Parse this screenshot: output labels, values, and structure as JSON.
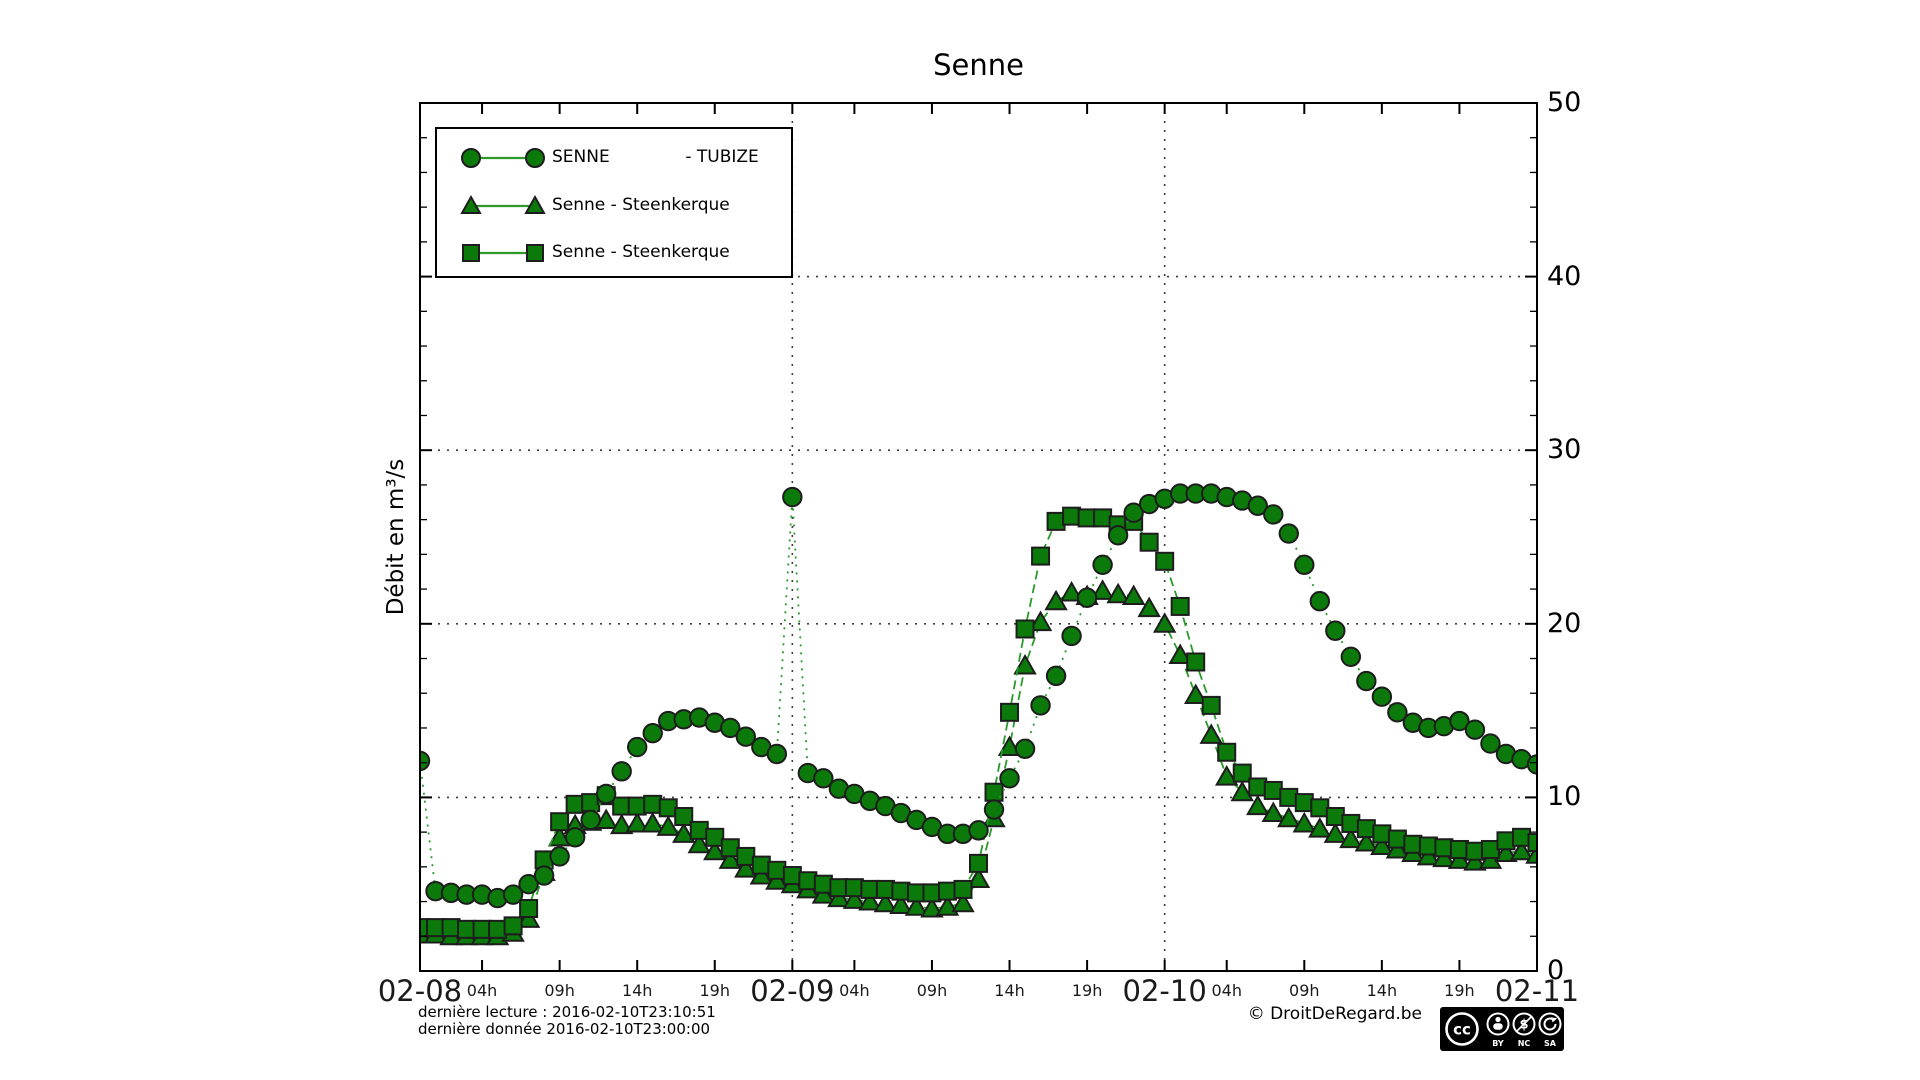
{
  "page": {
    "background": "#ffffff"
  },
  "chart_data": {
    "type": "line",
    "title": "Senne",
    "ylabel": "Débit en m³/s",
    "xlabel": "",
    "ylim": [
      0,
      50
    ],
    "y_ticks": [
      {
        "value": 0,
        "label": "0"
      },
      {
        "value": 10,
        "label": "10"
      },
      {
        "value": 20,
        "label": "20"
      },
      {
        "value": 30,
        "label": "30"
      },
      {
        "value": 40,
        "label": "40"
      },
      {
        "value": 50,
        "label": "50"
      }
    ],
    "y_minor_step": 2,
    "x_axis": {
      "total_hours": 72,
      "day_ticks": [
        {
          "hour": 0,
          "label": "02-08"
        },
        {
          "hour": 24,
          "label": "02-09"
        },
        {
          "hour": 48,
          "label": "02-10"
        },
        {
          "hour": 72,
          "label": "02-11"
        }
      ],
      "hour_ticks": [
        {
          "hour": 4,
          "label": "04h"
        },
        {
          "hour": 9,
          "label": "09h"
        },
        {
          "hour": 14,
          "label": "14h"
        },
        {
          "hour": 19,
          "label": "19h"
        },
        {
          "hour": 28,
          "label": "04h"
        },
        {
          "hour": 33,
          "label": "09h"
        },
        {
          "hour": 38,
          "label": "14h"
        },
        {
          "hour": 43,
          "label": "19h"
        },
        {
          "hour": 52,
          "label": "04h"
        },
        {
          "hour": 57,
          "label": "09h"
        },
        {
          "hour": 62,
          "label": "14h"
        },
        {
          "hour": 67,
          "label": "19h"
        }
      ]
    },
    "grid": {
      "horizontal_values": [
        10,
        20,
        30,
        40
      ],
      "vertical_hours": [
        24,
        48
      ],
      "style": "dotted"
    },
    "legend": [
      {
        "label": "SENNE              - TUBIZE",
        "marker": "circle"
      },
      {
        "label": "Senne - Steenkerque",
        "marker": "triangle"
      },
      {
        "label": "Senne - Steenkerque",
        "marker": "square"
      }
    ],
    "series": [
      {
        "name": "SENNE - TUBIZE",
        "marker": "circle",
        "line_style": "dotted",
        "z": 3,
        "x_start_hour": 0,
        "x_step_hours": 1,
        "values": [
          12.1,
          4.6,
          4.5,
          4.4,
          4.4,
          4.2,
          4.4,
          5.0,
          5.5,
          6.6,
          7.7,
          8.7,
          10.2,
          11.5,
          12.9,
          13.7,
          14.4,
          14.5,
          14.6,
          14.3,
          14.0,
          13.5,
          12.9,
          12.5,
          27.3,
          11.4,
          11.1,
          10.5,
          10.2,
          9.8,
          9.5,
          9.1,
          8.7,
          8.3,
          7.9,
          7.9,
          8.1,
          9.3,
          11.1,
          12.8,
          15.3,
          17.0,
          19.3,
          21.5,
          23.4,
          25.1,
          26.4,
          26.9,
          27.2,
          27.5,
          27.5,
          27.5,
          27.3,
          27.1,
          26.8,
          26.3,
          25.2,
          23.4,
          21.3,
          19.6,
          18.1,
          16.7,
          15.8,
          14.9,
          14.3,
          14.0,
          14.1,
          14.4,
          13.9,
          13.1,
          12.5,
          12.2,
          11.9
        ]
      },
      {
        "name": "Senne - Steenkerque",
        "marker": "triangle",
        "line_style": "dashed",
        "z": 1,
        "x_start_hour": 0,
        "x_step_hours": 1,
        "values": [
          2.1,
          2.1,
          2.0,
          2.0,
          2.0,
          2.0,
          2.2,
          3.0,
          5.7,
          7.7,
          8.4,
          8.6,
          8.7,
          8.4,
          8.5,
          8.5,
          8.3,
          7.9,
          7.3,
          6.9,
          6.4,
          5.9,
          5.5,
          5.2,
          5.0,
          4.7,
          4.4,
          4.2,
          4.1,
          4.0,
          3.9,
          3.8,
          3.7,
          3.6,
          3.7,
          3.9,
          5.3,
          8.8,
          12.9,
          17.6,
          20.1,
          21.3,
          21.8,
          21.6,
          21.9,
          21.7,
          21.6,
          20.9,
          20.0,
          18.2,
          15.9,
          13.6,
          11.2,
          10.3,
          9.5,
          9.1,
          8.8,
          8.5,
          8.2,
          7.9,
          7.6,
          7.4,
          7.2,
          7.0,
          6.8,
          6.6,
          6.5,
          6.4,
          6.3,
          6.4,
          6.8,
          6.9,
          6.7
        ]
      },
      {
        "name": "Senne - Steenkerque",
        "marker": "square",
        "line_style": "dashed",
        "z": 2,
        "x_start_hour": 0,
        "x_step_hours": 1,
        "values": [
          2.5,
          2.5,
          2.5,
          2.4,
          2.4,
          2.4,
          2.6,
          3.6,
          6.4,
          8.6,
          9.6,
          9.7,
          10.1,
          9.5,
          9.5,
          9.6,
          9.4,
          8.9,
          8.1,
          7.7,
          7.1,
          6.6,
          6.1,
          5.8,
          5.5,
          5.2,
          5.0,
          4.8,
          4.8,
          4.7,
          4.7,
          4.6,
          4.5,
          4.5,
          4.6,
          4.7,
          6.2,
          10.3,
          14.9,
          19.7,
          23.9,
          25.9,
          26.2,
          26.1,
          26.1,
          25.7,
          25.9,
          24.7,
          23.6,
          21.0,
          17.8,
          15.3,
          12.6,
          11.4,
          10.6,
          10.4,
          10.0,
          9.7,
          9.4,
          8.9,
          8.5,
          8.2,
          7.9,
          7.6,
          7.3,
          7.2,
          7.1,
          7.0,
          6.9,
          7.0,
          7.5,
          7.7,
          7.4
        ]
      }
    ],
    "colors": {
      "marker_fill": "#0b7a0b",
      "marker_edge": "#1d1d1d",
      "line_green": "#2b9a2b",
      "grid": "#3c3c3c",
      "axis": "#000000",
      "background": "#ffffff"
    }
  },
  "footer": {
    "line1": "dernière lecture : 2016-02-10T23:10:51",
    "line2": "dernière donnée  2016-02-10T23:00:00",
    "copyright": "© DroitDeRegard.be"
  },
  "cc_badge": {
    "cc_label": "cc",
    "nc_symbol": "$",
    "icon_labels": [
      "BY",
      "NC",
      "SA"
    ]
  }
}
